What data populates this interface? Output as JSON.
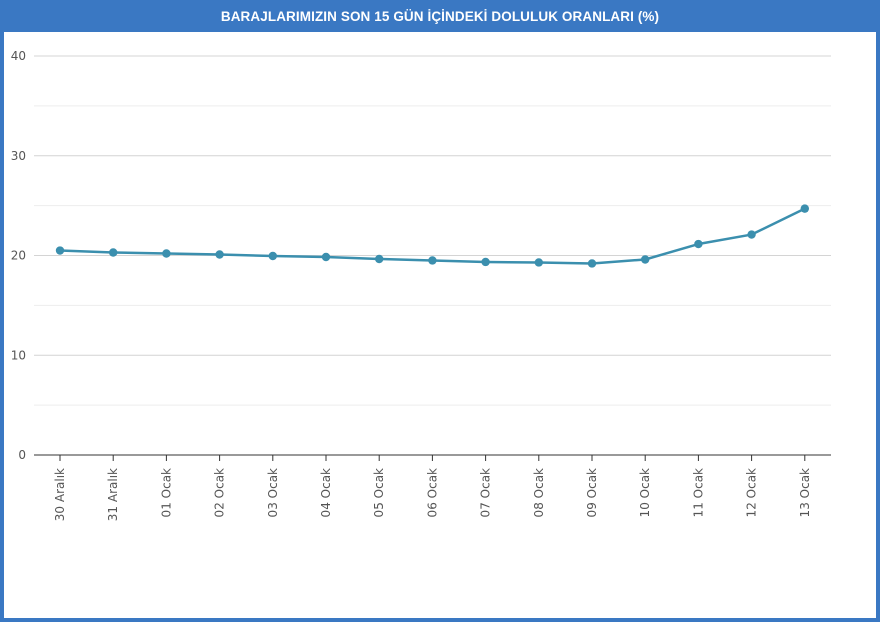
{
  "chart_data": {
    "type": "line",
    "title": "BARAJLARIMIZIN SON 15 GÜN İÇİNDEKİ DOLULUK ORANLARI (%)",
    "xlabel": "",
    "ylabel": "",
    "ylim": [
      0,
      40
    ],
    "yticks": [
      0,
      10,
      20,
      30,
      40
    ],
    "grid": true,
    "categories": [
      "30 Aralık",
      "31 Aralık",
      "01 Ocak",
      "02 Ocak",
      "03 Ocak",
      "04 Ocak",
      "05 Ocak",
      "06 Ocak",
      "07 Ocak",
      "08 Ocak",
      "09 Ocak",
      "10 Ocak",
      "11 Ocak",
      "12 Ocak",
      "13 Ocak"
    ],
    "series": [
      {
        "values": [
          20.5,
          20.3,
          20.2,
          20.1,
          19.95,
          19.85,
          19.65,
          19.5,
          19.35,
          19.3,
          19.2,
          19.6,
          21.15,
          22.1,
          24.7
        ],
        "color": "#3b8fae"
      }
    ]
  },
  "colors": {
    "title_bar": "#3a78c3",
    "grid": "#d8d8d8",
    "axis": "#333333",
    "line": "#3b8fae"
  }
}
